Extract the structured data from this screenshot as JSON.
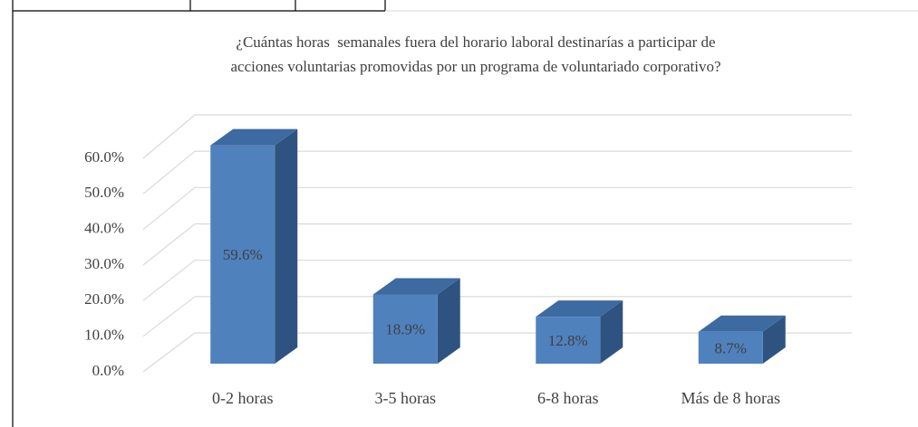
{
  "chart_data": {
    "type": "bar3d",
    "title": [
      "¿Cuántas horas  semanales fuera del horario laboral destinarías a participar de",
      "acciones voluntarias promovidas por un programa de voluntariado corporativo?"
    ],
    "categories": [
      "0-2 horas",
      "3-5 horas",
      "6-8 horas",
      "Más de 8 horas"
    ],
    "values": [
      59.6,
      18.9,
      12.8,
      8.7
    ],
    "value_labels": [
      "59.6%",
      "18.9%",
      "12.8%",
      "8.7%"
    ],
    "color": "#4f81bd",
    "ylim": [
      0,
      60
    ],
    "yticks": [
      {
        "value": 0,
        "label": "0.0%"
      },
      {
        "value": 10,
        "label": "10.0%"
      },
      {
        "value": 20,
        "label": "20.0%"
      },
      {
        "value": 30,
        "label": "30.0%"
      },
      {
        "value": 40,
        "label": "40.0%"
      },
      {
        "value": 50,
        "label": "50.0%"
      },
      {
        "value": 60,
        "label": "60.0%"
      }
    ],
    "grid": true
  }
}
